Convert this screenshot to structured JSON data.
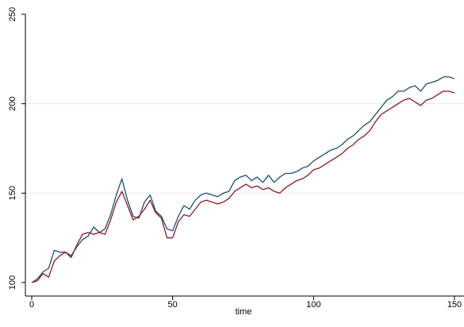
{
  "chart_data": {
    "type": "line",
    "title": "",
    "xlabel": "time",
    "ylabel": "",
    "xlim": [
      0,
      150
    ],
    "ylim": [
      100,
      250
    ],
    "x_ticks": [
      0,
      50,
      100,
      150
    ],
    "y_ticks": [
      100,
      150,
      200,
      250
    ],
    "x_tick_labels": [
      "0",
      "50",
      "100",
      "150"
    ],
    "y_tick_labels": [
      "100",
      "150",
      "200",
      "250"
    ],
    "grid": "horizontal",
    "legend": "none",
    "series": [
      {
        "name": "",
        "color": "#1f4e79",
        "points": [
          [
            0,
            100
          ],
          [
            2,
            102
          ],
          [
            4,
            106
          ],
          [
            6,
            108
          ],
          [
            8,
            118
          ],
          [
            10,
            117
          ],
          [
            12,
            117
          ],
          [
            14,
            115
          ],
          [
            16,
            120
          ],
          [
            18,
            124
          ],
          [
            20,
            126
          ],
          [
            22,
            131
          ],
          [
            24,
            128
          ],
          [
            26,
            130
          ],
          [
            28,
            138
          ],
          [
            30,
            149
          ],
          [
            32,
            158
          ],
          [
            34,
            146
          ],
          [
            36,
            137
          ],
          [
            38,
            136
          ],
          [
            40,
            145
          ],
          [
            42,
            149
          ],
          [
            44,
            140
          ],
          [
            46,
            137
          ],
          [
            48,
            130
          ],
          [
            50,
            129
          ],
          [
            52,
            137
          ],
          [
            54,
            143
          ],
          [
            56,
            141
          ],
          [
            58,
            146
          ],
          [
            60,
            149
          ],
          [
            62,
            150
          ],
          [
            64,
            149
          ],
          [
            66,
            148
          ],
          [
            68,
            150
          ],
          [
            70,
            151
          ],
          [
            72,
            157
          ],
          [
            74,
            159
          ],
          [
            76,
            160
          ],
          [
            78,
            157
          ],
          [
            80,
            159
          ],
          [
            82,
            156
          ],
          [
            84,
            160
          ],
          [
            86,
            156
          ],
          [
            88,
            159
          ],
          [
            90,
            161
          ],
          [
            92,
            161
          ],
          [
            94,
            162
          ],
          [
            96,
            164
          ],
          [
            98,
            165
          ],
          [
            100,
            168
          ],
          [
            102,
            170
          ],
          [
            104,
            172
          ],
          [
            106,
            174
          ],
          [
            108,
            175
          ],
          [
            110,
            177
          ],
          [
            112,
            180
          ],
          [
            114,
            182
          ],
          [
            116,
            185
          ],
          [
            118,
            188
          ],
          [
            120,
            190
          ],
          [
            122,
            194
          ],
          [
            124,
            198
          ],
          [
            126,
            202
          ],
          [
            128,
            204
          ],
          [
            130,
            207
          ],
          [
            132,
            207
          ],
          [
            134,
            209
          ],
          [
            136,
            210
          ],
          [
            138,
            207
          ],
          [
            140,
            211
          ],
          [
            142,
            212
          ],
          [
            144,
            213
          ],
          [
            146,
            215
          ],
          [
            148,
            215
          ],
          [
            150,
            214
          ]
        ]
      },
      {
        "name": "",
        "color": "#8b1a2b",
        "points": [
          [
            0,
            100
          ],
          [
            2,
            101
          ],
          [
            4,
            105
          ],
          [
            6,
            103
          ],
          [
            8,
            112
          ],
          [
            10,
            115
          ],
          [
            12,
            117
          ],
          [
            14,
            114
          ],
          [
            16,
            121
          ],
          [
            18,
            127
          ],
          [
            20,
            128
          ],
          [
            22,
            127
          ],
          [
            24,
            128
          ],
          [
            26,
            127
          ],
          [
            28,
            135
          ],
          [
            30,
            145
          ],
          [
            32,
            151
          ],
          [
            34,
            143
          ],
          [
            36,
            135
          ],
          [
            38,
            137
          ],
          [
            40,
            141
          ],
          [
            42,
            146
          ],
          [
            44,
            139
          ],
          [
            46,
            136
          ],
          [
            48,
            125
          ],
          [
            50,
            125
          ],
          [
            52,
            134
          ],
          [
            54,
            138
          ],
          [
            56,
            137
          ],
          [
            58,
            141
          ],
          [
            60,
            145
          ],
          [
            62,
            146
          ],
          [
            64,
            145
          ],
          [
            66,
            144
          ],
          [
            68,
            145
          ],
          [
            70,
            147
          ],
          [
            72,
            151
          ],
          [
            74,
            153
          ],
          [
            76,
            155
          ],
          [
            78,
            153
          ],
          [
            80,
            154
          ],
          [
            82,
            152
          ],
          [
            84,
            153
          ],
          [
            86,
            151
          ],
          [
            88,
            150
          ],
          [
            90,
            153
          ],
          [
            92,
            155
          ],
          [
            94,
            157
          ],
          [
            96,
            158
          ],
          [
            98,
            160
          ],
          [
            100,
            163
          ],
          [
            102,
            164
          ],
          [
            104,
            166
          ],
          [
            106,
            168
          ],
          [
            108,
            170
          ],
          [
            110,
            172
          ],
          [
            112,
            175
          ],
          [
            114,
            177
          ],
          [
            116,
            180
          ],
          [
            118,
            182
          ],
          [
            120,
            185
          ],
          [
            122,
            190
          ],
          [
            124,
            194
          ],
          [
            126,
            196
          ],
          [
            128,
            198
          ],
          [
            130,
            200
          ],
          [
            132,
            202
          ],
          [
            134,
            203
          ],
          [
            136,
            201
          ],
          [
            138,
            199
          ],
          [
            140,
            202
          ],
          [
            142,
            203
          ],
          [
            144,
            205
          ],
          [
            146,
            207
          ],
          [
            148,
            207
          ],
          [
            150,
            206
          ]
        ]
      }
    ]
  }
}
